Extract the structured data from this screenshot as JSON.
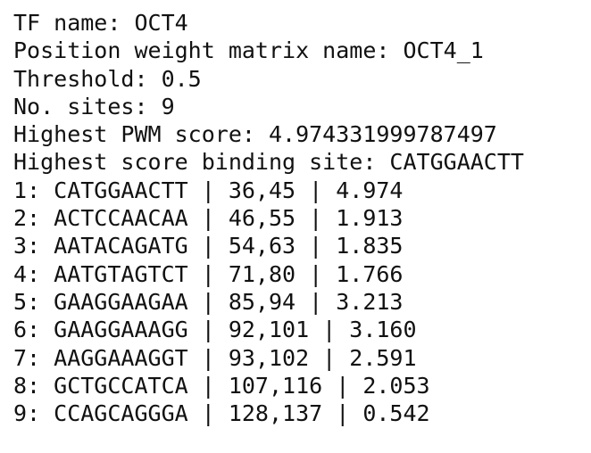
{
  "lines": [
    "TF name: OCT4",
    "Position weight matrix name: OCT4_1",
    "Threshold: 0.5",
    "No. sites: 9",
    "Highest PWM score: 4.974331999787497",
    "Highest score binding site: CATGGAACTT",
    "1: CATGGAACTT | 36,45 | 4.974",
    "2: ACTCCAACAA | 46,55 | 1.913",
    "3: AATACAGATG | 54,63 | 1.835",
    "4: AATGTAGTCT | 71,80 | 1.766",
    "5: GAAGGAAGAA | 85,94 | 3.213",
    "6: GAAGGAAAGG | 92,101 | 3.160",
    "7: AAGGAAAGGT | 93,102 | 2.591",
    "8: GCTGCCATCA | 107,116 | 2.053",
    "9: CCAGCAGGGA | 128,137 | 0.542"
  ]
}
